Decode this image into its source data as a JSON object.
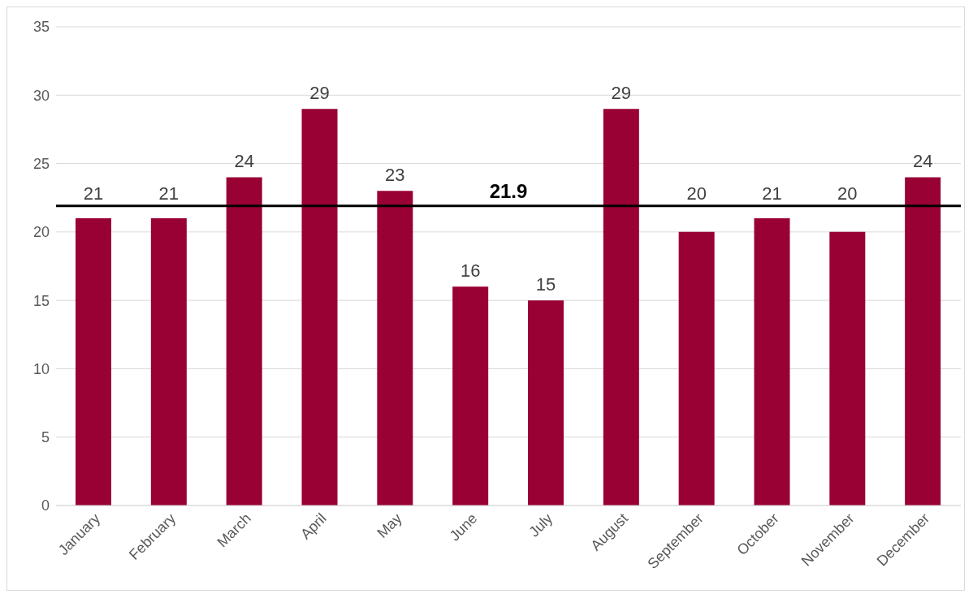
{
  "chart_data": {
    "type": "bar",
    "categories": [
      "January",
      "February",
      "March",
      "April",
      "May",
      "June",
      "July",
      "August",
      "September",
      "October",
      "November",
      "December"
    ],
    "values": [
      21,
      21,
      24,
      29,
      23,
      16,
      15,
      29,
      20,
      21,
      20,
      24
    ],
    "color": "#990033",
    "ylim": [
      0,
      35
    ],
    "yticks": [
      0,
      5,
      10,
      15,
      20,
      25,
      30,
      35
    ],
    "grid": "y",
    "data_labels": true,
    "ref_lines": [
      {
        "axis": "y",
        "value": 21.9,
        "label": "21.9",
        "color": "#000000",
        "line_style": "solid"
      }
    ]
  }
}
